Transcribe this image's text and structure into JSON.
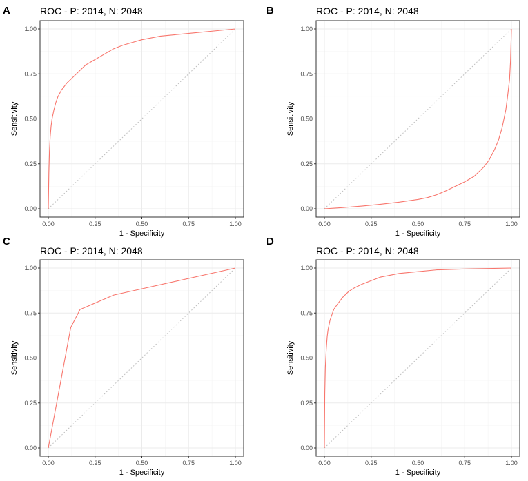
{
  "chart_data": [
    {
      "panel": "A",
      "type": "line",
      "title": "ROC - P: 2014, N: 2048",
      "xlabel": "1 - Specificity",
      "ylabel": "Sensitivity",
      "xlim": [
        0,
        1
      ],
      "ylim": [
        0,
        1
      ],
      "xticks": [
        "0.00",
        "0.25",
        "0.50",
        "0.75",
        "1.00"
      ],
      "yticks": [
        "0.00",
        "0.25",
        "0.50",
        "0.75",
        "1.00"
      ],
      "grid": true,
      "reference_line": [
        [
          0,
          0
        ],
        [
          1,
          1
        ]
      ],
      "series": [
        {
          "name": "ROC",
          "color": "#F8766D",
          "points": [
            [
              0,
              0
            ],
            [
              0.003,
              0.2
            ],
            [
              0.006,
              0.32
            ],
            [
              0.01,
              0.4
            ],
            [
              0.015,
              0.46
            ],
            [
              0.02,
              0.5
            ],
            [
              0.03,
              0.55
            ],
            [
              0.04,
              0.59
            ],
            [
              0.05,
              0.62
            ],
            [
              0.07,
              0.66
            ],
            [
              0.1,
              0.7
            ],
            [
              0.13,
              0.73
            ],
            [
              0.16,
              0.76
            ],
            [
              0.2,
              0.8
            ],
            [
              0.25,
              0.83
            ],
            [
              0.3,
              0.86
            ],
            [
              0.35,
              0.89
            ],
            [
              0.4,
              0.91
            ],
            [
              0.5,
              0.94
            ],
            [
              0.6,
              0.96
            ],
            [
              0.7,
              0.97
            ],
            [
              0.8,
              0.98
            ],
            [
              0.9,
              0.99
            ],
            [
              1.0,
              1.0
            ]
          ]
        }
      ]
    },
    {
      "panel": "B",
      "type": "line",
      "title": "ROC - P: 2014, N: 2048",
      "xlabel": "1 - Specificity",
      "ylabel": "Sensitivity",
      "xlim": [
        0,
        1
      ],
      "ylim": [
        0,
        1
      ],
      "xticks": [
        "0.00",
        "0.25",
        "0.50",
        "0.75",
        "1.00"
      ],
      "yticks": [
        "0.00",
        "0.25",
        "0.50",
        "0.75",
        "1.00"
      ],
      "grid": true,
      "reference_line": [
        [
          0,
          0
        ],
        [
          1,
          1
        ]
      ],
      "series": [
        {
          "name": "ROC",
          "color": "#F8766D",
          "points": [
            [
              0,
              0
            ],
            [
              0.1,
              0.007
            ],
            [
              0.2,
              0.015
            ],
            [
              0.3,
              0.025
            ],
            [
              0.4,
              0.037
            ],
            [
              0.5,
              0.052
            ],
            [
              0.55,
              0.062
            ],
            [
              0.6,
              0.078
            ],
            [
              0.65,
              0.1
            ],
            [
              0.7,
              0.125
            ],
            [
              0.75,
              0.15
            ],
            [
              0.8,
              0.18
            ],
            [
              0.85,
              0.23
            ],
            [
              0.88,
              0.27
            ],
            [
              0.91,
              0.33
            ],
            [
              0.93,
              0.38
            ],
            [
              0.95,
              0.45
            ],
            [
              0.97,
              0.55
            ],
            [
              0.98,
              0.63
            ],
            [
              0.99,
              0.72
            ],
            [
              0.995,
              0.82
            ],
            [
              1.0,
              1.0
            ]
          ]
        }
      ]
    },
    {
      "panel": "C",
      "type": "line",
      "title": "ROC - P: 2014, N: 2048",
      "xlabel": "1 - Specificity",
      "ylabel": "Sensitivity",
      "xlim": [
        0,
        1
      ],
      "ylim": [
        0,
        1
      ],
      "xticks": [
        "0.00",
        "0.25",
        "0.50",
        "0.75",
        "1.00"
      ],
      "yticks": [
        "0.00",
        "0.25",
        "0.50",
        "0.75",
        "1.00"
      ],
      "grid": true,
      "reference_line": [
        [
          0,
          0
        ],
        [
          1,
          1
        ]
      ],
      "series": [
        {
          "name": "ROC",
          "color": "#F8766D",
          "points": [
            [
              0,
              0
            ],
            [
              0.12,
              0.67
            ],
            [
              0.17,
              0.77
            ],
            [
              0.35,
              0.85
            ],
            [
              1.0,
              1.0
            ]
          ]
        }
      ]
    },
    {
      "panel": "D",
      "type": "line",
      "title": "ROC - P: 2014, N: 2048",
      "xlabel": "1 - Specificity",
      "ylabel": "Sensitivity",
      "xlim": [
        0,
        1
      ],
      "ylim": [
        0,
        1
      ],
      "xticks": [
        "0.00",
        "0.25",
        "0.50",
        "0.75",
        "1.00"
      ],
      "yticks": [
        "0.00",
        "0.25",
        "0.50",
        "0.75",
        "1.00"
      ],
      "grid": true,
      "reference_line": [
        [
          0,
          0
        ],
        [
          1,
          1
        ]
      ],
      "series": [
        {
          "name": "ROC",
          "color": "#F8766D",
          "points": [
            [
              0,
              0
            ],
            [
              0.002,
              0.3
            ],
            [
              0.005,
              0.45
            ],
            [
              0.01,
              0.55
            ],
            [
              0.015,
              0.62
            ],
            [
              0.02,
              0.66
            ],
            [
              0.03,
              0.71
            ],
            [
              0.04,
              0.74
            ],
            [
              0.05,
              0.77
            ],
            [
              0.07,
              0.8
            ],
            [
              0.1,
              0.84
            ],
            [
              0.13,
              0.87
            ],
            [
              0.16,
              0.89
            ],
            [
              0.2,
              0.91
            ],
            [
              0.25,
              0.93
            ],
            [
              0.3,
              0.95
            ],
            [
              0.4,
              0.97
            ],
            [
              0.5,
              0.98
            ],
            [
              0.6,
              0.99
            ],
            [
              0.75,
              0.995
            ],
            [
              1.0,
              1.0
            ]
          ]
        }
      ]
    }
  ]
}
